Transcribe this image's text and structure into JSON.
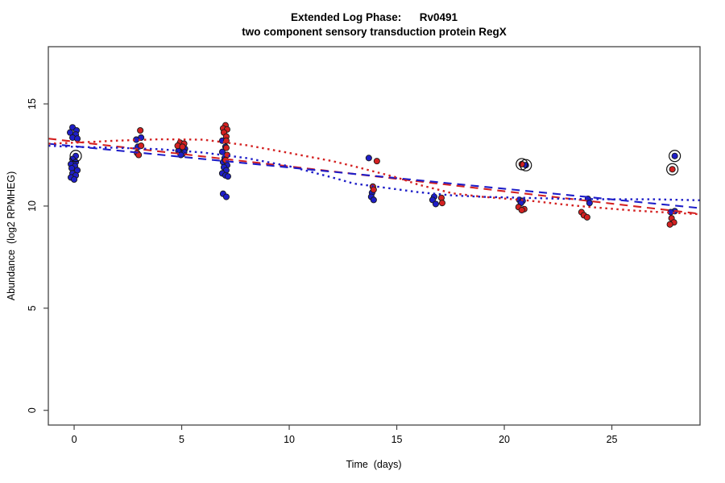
{
  "header": {
    "title_line1": "Extended Log Phase:      Rv0491",
    "title_line2": "two component sensory transduction protein RegX"
  },
  "chart_data": {
    "type": "scatter",
    "title": "Extended Log Phase:      Rv0491",
    "subtitle": "two component sensory transduction protein RegX",
    "xlabel": "Time  (days)",
    "ylabel": "Abundance  (log2 RPMHEG)",
    "xlim": [
      -1.2,
      29.1
    ],
    "ylim": [
      -0.72,
      17.8
    ],
    "x_ticks": [
      0,
      5,
      10,
      15,
      20,
      25
    ],
    "y_ticks": [
      0,
      5,
      10,
      15
    ],
    "grid": false,
    "legend": "none",
    "colors": {
      "red": "#d42121",
      "blue": "#1e1ec8",
      "outline": "#1a1a1a",
      "axis": "#444444",
      "ring": "#111111"
    },
    "point_radius": 3.6,
    "series": [
      {
        "name": "blue-replicates",
        "color": "#1e1ec8",
        "points": [
          [
            0,
            13.85,
            -2,
            0
          ],
          [
            0,
            13.7,
            3,
            0
          ],
          [
            0,
            13.6,
            -5,
            0
          ],
          [
            0,
            13.5,
            2,
            0
          ],
          [
            0,
            13.35,
            -2,
            0
          ],
          [
            0,
            13.3,
            4,
            0
          ],
          [
            0,
            12.45,
            2,
            1
          ],
          [
            0,
            12.3,
            -2,
            0
          ],
          [
            0,
            12.15,
            2,
            0
          ],
          [
            0,
            12.05,
            -4,
            0
          ],
          [
            0,
            11.95,
            1,
            0
          ],
          [
            0,
            11.85,
            -3,
            0
          ],
          [
            0,
            11.75,
            4,
            0
          ],
          [
            0,
            11.6,
            -2,
            0
          ],
          [
            0,
            11.5,
            2,
            0
          ],
          [
            0,
            11.4,
            -4,
            0
          ],
          [
            0,
            11.3,
            0,
            0
          ],
          [
            3,
            13.35,
            3,
            0
          ],
          [
            3,
            13.25,
            -3,
            0
          ],
          [
            3,
            12.9,
            -1,
            0
          ],
          [
            5,
            12.95,
            -4,
            0
          ],
          [
            5,
            12.9,
            2,
            0
          ],
          [
            5,
            12.85,
            -1,
            0
          ],
          [
            5,
            12.8,
            4,
            0
          ],
          [
            5,
            12.75,
            0,
            0
          ],
          [
            5,
            12.7,
            -4,
            0
          ],
          [
            5,
            12.65,
            3,
            0
          ],
          [
            5,
            12.6,
            -2,
            0
          ],
          [
            5,
            12.55,
            1,
            0
          ],
          [
            5,
            12.5,
            -1,
            0
          ],
          [
            7,
            13.2,
            -3,
            0
          ],
          [
            7,
            12.9,
            1,
            0
          ],
          [
            7,
            12.65,
            -3,
            0
          ],
          [
            7,
            12.35,
            0,
            0
          ],
          [
            7,
            12.15,
            -2,
            0
          ],
          [
            7,
            12.0,
            3,
            0
          ],
          [
            7,
            11.9,
            -1,
            0
          ],
          [
            7,
            11.75,
            2,
            0
          ],
          [
            7,
            11.6,
            -3,
            0
          ],
          [
            7,
            11.5,
            1,
            0
          ],
          [
            7,
            11.45,
            4,
            0
          ],
          [
            7,
            10.6,
            -2,
            0
          ],
          [
            7,
            10.45,
            2,
            0
          ],
          [
            14,
            12.35,
            -8,
            0
          ],
          [
            14,
            10.65,
            -4,
            0
          ],
          [
            14,
            10.45,
            -5,
            0
          ],
          [
            14,
            10.3,
            -2,
            0
          ],
          [
            17,
            10.45,
            -7,
            0
          ],
          [
            17,
            10.3,
            -9,
            0
          ],
          [
            17,
            10.1,
            -5,
            0
          ],
          [
            21,
            12.0,
            0,
            1
          ],
          [
            21,
            10.3,
            -8,
            0
          ],
          [
            21,
            10.25,
            -4,
            0
          ],
          [
            21,
            10.15,
            -6,
            0
          ],
          [
            24,
            10.35,
            -3,
            0
          ],
          [
            24,
            10.15,
            -1,
            0
          ],
          [
            28,
            12.45,
            -2,
            1
          ],
          [
            28,
            9.75,
            -2,
            0
          ],
          [
            28,
            9.7,
            -7,
            0
          ]
        ]
      },
      {
        "name": "red-replicates",
        "color": "#d42121",
        "points": [
          [
            3,
            13.7,
            2,
            0
          ],
          [
            3,
            12.95,
            3,
            0
          ],
          [
            3,
            12.6,
            -2,
            0
          ],
          [
            3,
            12.5,
            0,
            0
          ],
          [
            5,
            13.1,
            -2,
            0
          ],
          [
            5,
            13.05,
            3,
            0
          ],
          [
            5,
            12.95,
            -5,
            0
          ],
          [
            5,
            12.9,
            1,
            0
          ],
          [
            7,
            13.95,
            1,
            0
          ],
          [
            7,
            13.8,
            -2,
            0
          ],
          [
            7,
            13.75,
            3,
            0
          ],
          [
            7,
            13.6,
            -1,
            0
          ],
          [
            7,
            13.4,
            2,
            0
          ],
          [
            7,
            13.2,
            2,
            0
          ],
          [
            7,
            12.85,
            2,
            0
          ],
          [
            7,
            12.5,
            3,
            0
          ],
          [
            7,
            12.25,
            1,
            0
          ],
          [
            14,
            12.2,
            2,
            0
          ],
          [
            14,
            10.95,
            -3,
            0
          ],
          [
            14,
            10.8,
            -2,
            0
          ],
          [
            17,
            10.4,
            2,
            0
          ],
          [
            17,
            10.15,
            3,
            0
          ],
          [
            21,
            12.05,
            -5,
            1
          ],
          [
            21,
            9.95,
            -9,
            0
          ],
          [
            21,
            9.85,
            -2,
            0
          ],
          [
            21,
            9.8,
            -5,
            0
          ],
          [
            24,
            9.7,
            -11,
            0
          ],
          [
            24,
            9.55,
            -8,
            0
          ],
          [
            24,
            9.45,
            -4,
            0
          ],
          [
            28,
            11.8,
            -5,
            1
          ],
          [
            28,
            9.4,
            -6,
            0
          ],
          [
            28,
            9.2,
            -3,
            0
          ],
          [
            28,
            9.1,
            -8,
            0
          ]
        ]
      }
    ],
    "fit_lines": [
      {
        "name": "red-linear-fit",
        "color": "#d42121",
        "style": "dashed",
        "pts": [
          [
            -1.2,
            13.3
          ],
          [
            29.1,
            9.62
          ]
        ]
      },
      {
        "name": "blue-linear-fit",
        "color": "#1e1ec8",
        "style": "dashed",
        "pts": [
          [
            -1.2,
            13.05
          ],
          [
            29.1,
            9.9
          ]
        ]
      },
      {
        "name": "red-smooth-fit",
        "color": "#d42121",
        "style": "dotted",
        "pts": [
          [
            -1.2,
            13.05
          ],
          [
            0,
            13.1
          ],
          [
            2,
            13.2
          ],
          [
            4,
            13.27
          ],
          [
            6,
            13.25
          ],
          [
            8,
            12.98
          ],
          [
            10,
            12.6
          ],
          [
            12,
            12.2
          ],
          [
            13,
            11.95
          ],
          [
            15,
            11.4
          ],
          [
            16,
            11.05
          ],
          [
            17.6,
            10.62
          ],
          [
            19,
            10.45
          ],
          [
            21,
            10.28
          ],
          [
            23,
            10.05
          ],
          [
            24,
            9.95
          ],
          [
            26,
            9.78
          ],
          [
            27,
            9.72
          ],
          [
            29.1,
            9.6
          ]
        ]
      },
      {
        "name": "blue-smooth-fit",
        "color": "#1e1ec8",
        "style": "dotted",
        "pts": [
          [
            -1.2,
            12.95
          ],
          [
            0,
            12.9
          ],
          [
            2,
            12.85
          ],
          [
            4,
            12.78
          ],
          [
            6,
            12.62
          ],
          [
            8,
            12.35
          ],
          [
            10,
            11.95
          ],
          [
            12,
            11.4
          ],
          [
            13,
            11.1
          ],
          [
            15,
            10.82
          ],
          [
            16,
            10.68
          ],
          [
            17.6,
            10.52
          ],
          [
            19,
            10.45
          ],
          [
            21,
            10.4
          ],
          [
            23,
            10.35
          ],
          [
            25,
            10.33
          ],
          [
            27,
            10.33
          ],
          [
            29.1,
            10.28
          ]
        ]
      }
    ],
    "outliers_circled": [
      {
        "day": 0,
        "value": 12.45,
        "series": "blue"
      },
      {
        "day": 21,
        "value": 12.05,
        "series": "red"
      },
      {
        "day": 21,
        "value": 12.0,
        "series": "blue"
      },
      {
        "day": 28,
        "value": 12.45,
        "series": "blue"
      },
      {
        "day": 28,
        "value": 11.8,
        "series": "red"
      }
    ]
  }
}
